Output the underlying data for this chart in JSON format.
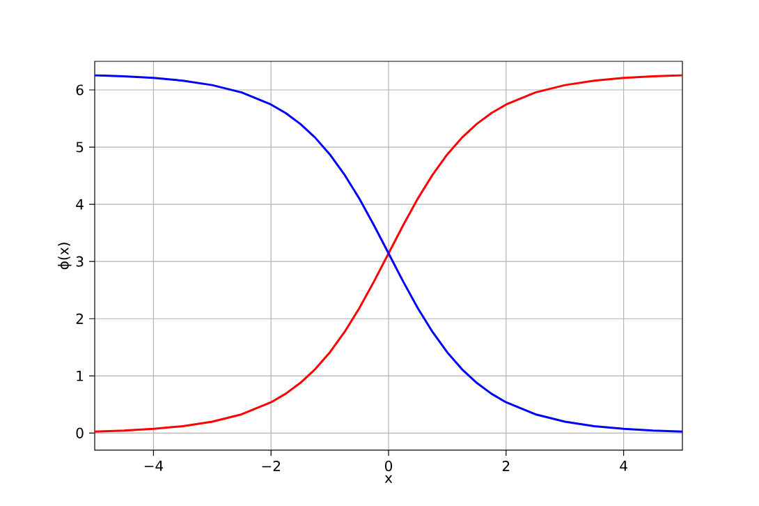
{
  "chart_data": {
    "type": "line",
    "xlabel": "x",
    "ylabel": "ϕ(x)",
    "x": [
      -5,
      -4.5,
      -4,
      -3.5,
      -3,
      -2.5,
      -2,
      -1.75,
      -1.5,
      -1.25,
      -1,
      -0.75,
      -0.5,
      -0.25,
      0,
      0.25,
      0.5,
      0.75,
      1,
      1.25,
      1.5,
      1.75,
      2,
      2.5,
      3,
      3.5,
      4,
      4.5,
      5
    ],
    "series": [
      {
        "color": "#ff0000",
        "values": [
          0.027,
          0.044,
          0.073,
          0.121,
          0.199,
          0.328,
          0.538,
          0.688,
          0.878,
          1.116,
          1.41,
          1.766,
          2.18,
          2.647,
          3.142,
          3.636,
          4.104,
          4.518,
          4.873,
          5.167,
          5.405,
          5.595,
          5.745,
          5.956,
          6.084,
          6.162,
          6.21,
          6.239,
          6.256
        ]
      },
      {
        "color": "#0000ff",
        "values": [
          6.256,
          6.239,
          6.21,
          6.162,
          6.084,
          5.956,
          5.745,
          5.595,
          5.405,
          5.167,
          4.873,
          4.518,
          4.104,
          3.636,
          3.142,
          2.647,
          2.18,
          1.766,
          1.41,
          1.116,
          0.878,
          0.688,
          0.538,
          0.328,
          0.199,
          0.121,
          0.073,
          0.044,
          0.027
        ]
      }
    ],
    "xlim": [
      -5,
      5
    ],
    "ylim": [
      -0.3,
      6.5
    ],
    "xticks": [
      {
        "value": -4,
        "label": "−4"
      },
      {
        "value": -2,
        "label": "−2"
      },
      0,
      2,
      4
    ],
    "yticks": [
      0,
      1,
      2,
      3,
      4,
      5,
      6
    ],
    "grid": true,
    "marker": "none",
    "line_style": "solid"
  }
}
